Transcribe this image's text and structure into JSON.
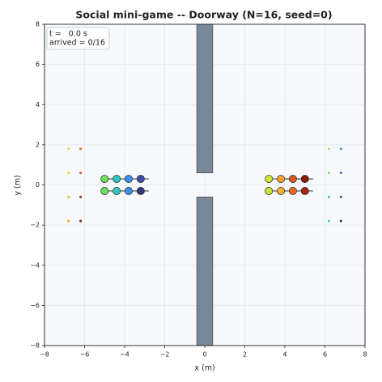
{
  "chart_data": {
    "type": "scatter",
    "title": "Social mini-game -- Doorway (N=16, seed=0)",
    "xlabel": "x (m)",
    "ylabel": "y (m)",
    "time_label": "t =   0.0 s",
    "arrived_label": "arrived = 0/16",
    "xlim": [
      -8,
      8
    ],
    "ylim": [
      -8,
      8
    ],
    "xticks": [
      {
        "value": -8,
        "label": "−8"
      },
      {
        "value": -6,
        "label": "−6"
      },
      {
        "value": -4,
        "label": "−4"
      },
      {
        "value": -2,
        "label": "−2"
      },
      0,
      2,
      4,
      6,
      8
    ],
    "yticks": [
      {
        "value": -8,
        "label": "−8"
      },
      {
        "value": -6,
        "label": "−6"
      },
      {
        "value": -4,
        "label": "−4"
      },
      {
        "value": -2,
        "label": "−2"
      },
      0,
      2,
      4,
      6,
      8
    ],
    "grid": true,
    "wall_color": "#778899",
    "walls": [
      {
        "x": [
          -0.4,
          0.4
        ],
        "y": [
          0.6,
          8
        ]
      },
      {
        "x": [
          -0.4,
          0.4
        ],
        "y": [
          -8,
          -0.6
        ]
      }
    ],
    "agents": [
      {
        "x": -5.0,
        "y": 0.3,
        "color": "#6ee25a"
      },
      {
        "x": -4.4,
        "y": 0.3,
        "color": "#2ec8c0"
      },
      {
        "x": -3.8,
        "y": 0.3,
        "color": "#3b8fe6"
      },
      {
        "x": -3.2,
        "y": 0.3,
        "color": "#3f4aa8"
      },
      {
        "x": -5.0,
        "y": -0.3,
        "color": "#6ee25a"
      },
      {
        "x": -4.4,
        "y": -0.3,
        "color": "#2ec8c0"
      },
      {
        "x": -3.8,
        "y": -0.3,
        "color": "#3b8fe6"
      },
      {
        "x": -3.2,
        "y": -0.3,
        "color": "#333a7a"
      },
      {
        "x": 3.2,
        "y": 0.3,
        "color": "#d2e23a"
      },
      {
        "x": 3.8,
        "y": 0.3,
        "color": "#f5a232"
      },
      {
        "x": 4.4,
        "y": 0.3,
        "color": "#e0521e"
      },
      {
        "x": 5.0,
        "y": 0.3,
        "color": "#8e1a0a"
      },
      {
        "x": 3.2,
        "y": -0.3,
        "color": "#c8e03a"
      },
      {
        "x": 3.8,
        "y": -0.3,
        "color": "#f5b032"
      },
      {
        "x": 4.4,
        "y": -0.3,
        "color": "#e86a22"
      },
      {
        "x": 5.0,
        "y": -0.3,
        "color": "#a32410"
      }
    ],
    "goals": [
      {
        "x": -6.8,
        "y": 1.8,
        "color": "#d2e23a"
      },
      {
        "x": -6.8,
        "y": 0.6,
        "color": "#e6d83a"
      },
      {
        "x": -6.8,
        "y": -0.6,
        "color": "#f5b032"
      },
      {
        "x": -6.8,
        "y": -1.8,
        "color": "#f5a232"
      },
      {
        "x": -6.2,
        "y": 1.8,
        "color": "#e86a22"
      },
      {
        "x": -6.2,
        "y": 0.6,
        "color": "#e0521e"
      },
      {
        "x": -6.2,
        "y": -0.6,
        "color": "#a32410"
      },
      {
        "x": -6.2,
        "y": -1.8,
        "color": "#8e1a0a"
      },
      {
        "x": 6.2,
        "y": 1.8,
        "color": "#9cee5a"
      },
      {
        "x": 6.2,
        "y": 0.6,
        "color": "#6ee25a"
      },
      {
        "x": 6.2,
        "y": -0.6,
        "color": "#2ec8c0"
      },
      {
        "x": 6.2,
        "y": -1.8,
        "color": "#3ad0d8"
      },
      {
        "x": 6.8,
        "y": 1.8,
        "color": "#3b8fe6"
      },
      {
        "x": 6.8,
        "y": 0.6,
        "color": "#4a6fe0"
      },
      {
        "x": 6.8,
        "y": -0.6,
        "color": "#3f4aa8"
      },
      {
        "x": 6.8,
        "y": -1.8,
        "color": "#333a7a"
      }
    ]
  }
}
